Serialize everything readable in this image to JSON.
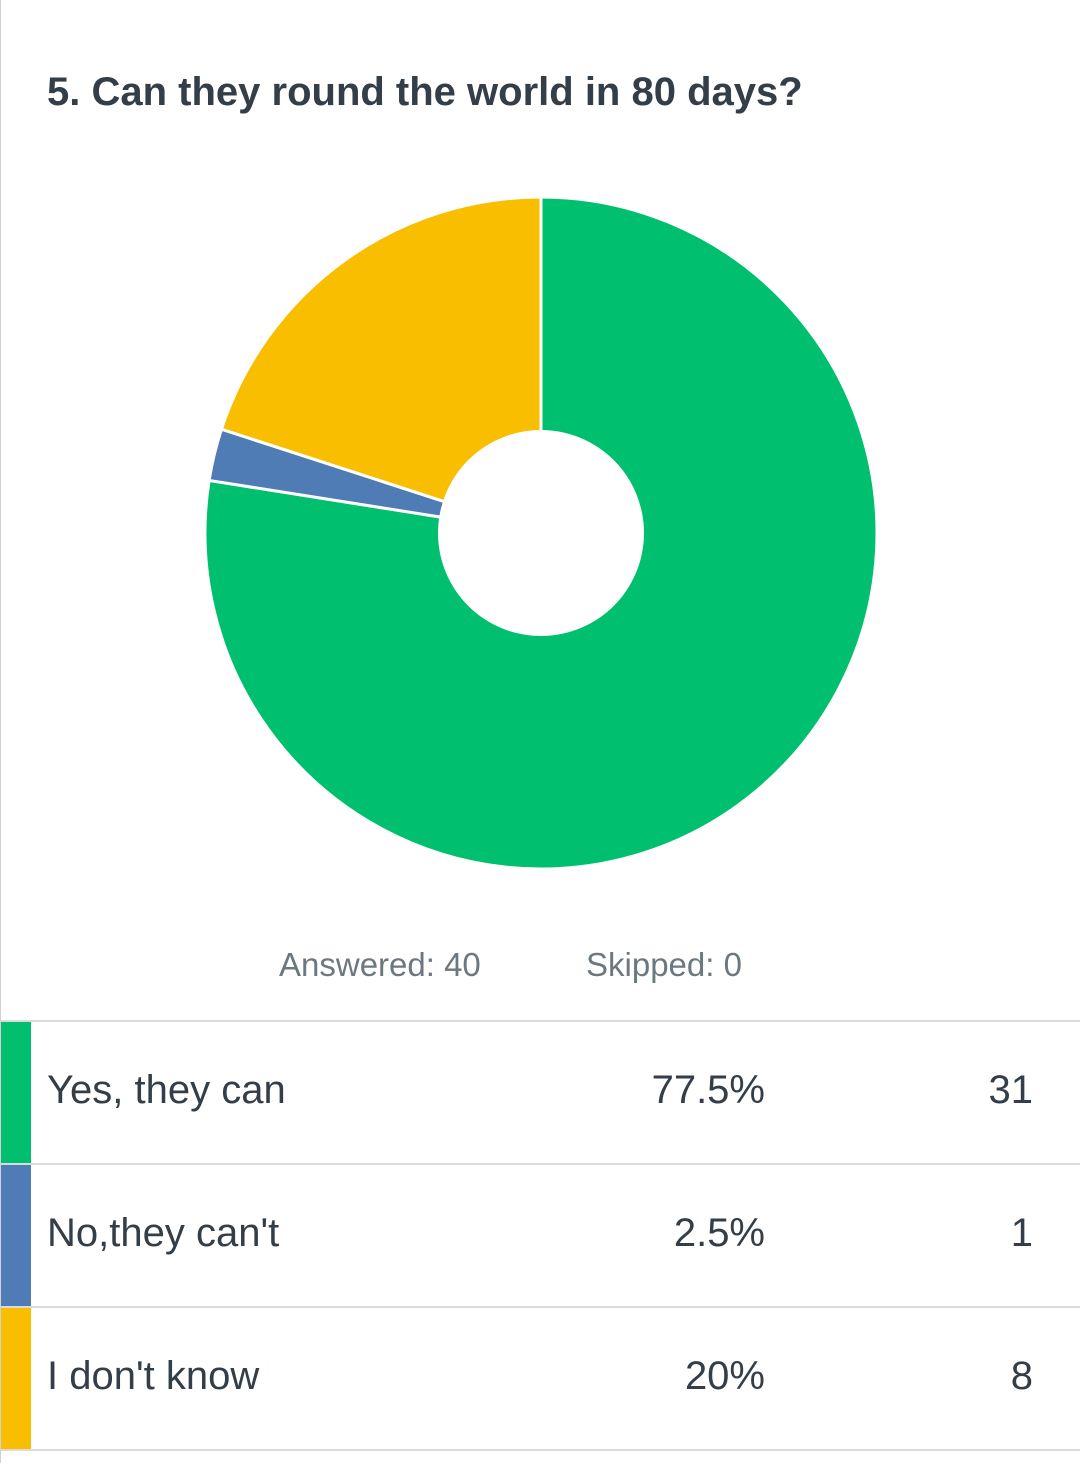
{
  "question": {
    "title": "5. Can they round the world in 80 days?"
  },
  "summary": {
    "answered": "Answered: 40",
    "skipped": "Skipped: 0"
  },
  "colors": {
    "yes": "#00bf6f",
    "no": "#507cb6",
    "dont_know": "#f9be00"
  },
  "chart_data": {
    "type": "pie",
    "variant": "donut",
    "title": "5. Can they round the world in 80 days?",
    "categories": [
      "Yes, they can",
      "No,they can't",
      "I don't know"
    ],
    "values": [
      77.5,
      2.5,
      20
    ],
    "counts": [
      31,
      1,
      8
    ],
    "colors": [
      "#00bf6f",
      "#507cb6",
      "#f9be00"
    ],
    "legend": "none"
  },
  "table": {
    "rows": [
      {
        "label": "Yes, they can",
        "percent": "77.5%",
        "count": "31"
      },
      {
        "label": "No,they can't",
        "percent": "2.5%",
        "count": "1"
      },
      {
        "label": "I don't know",
        "percent": "20%",
        "count": "8"
      }
    ]
  }
}
